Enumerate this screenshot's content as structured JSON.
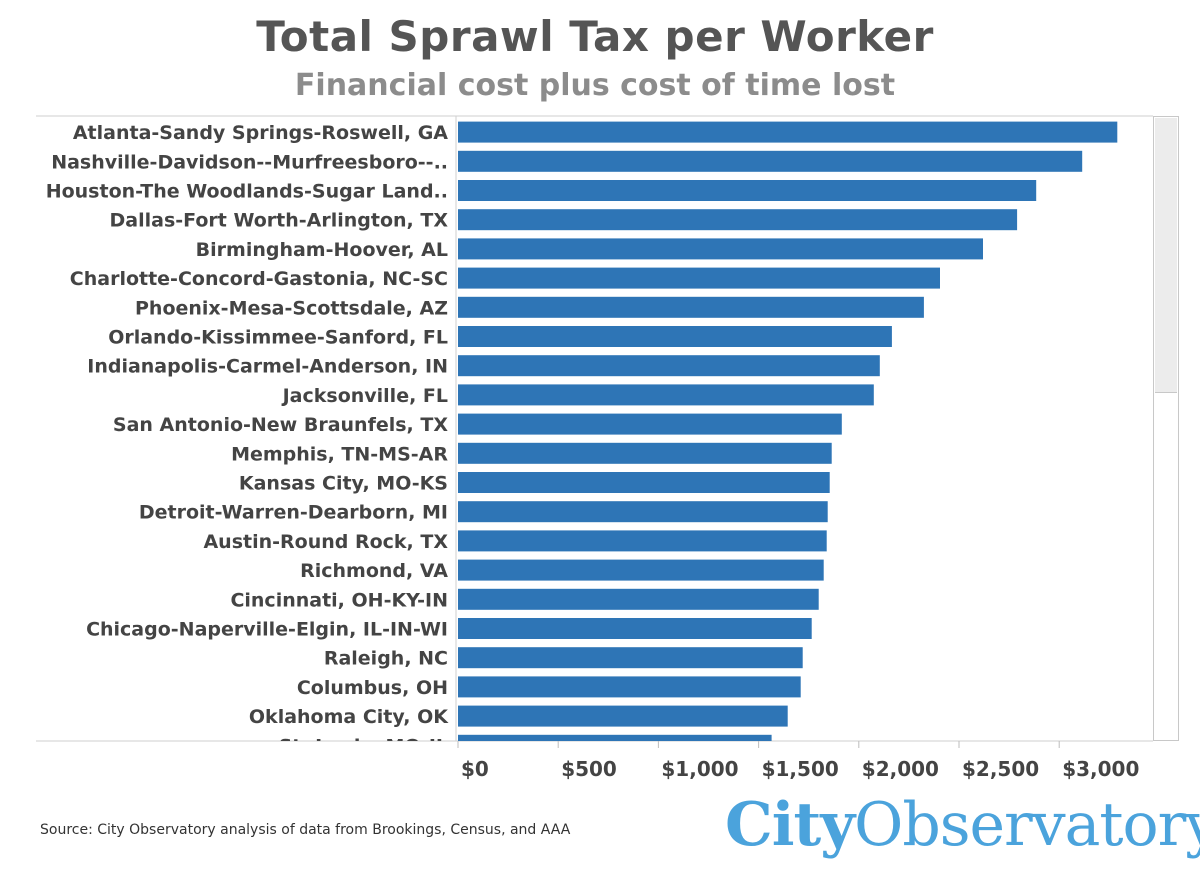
{
  "header": {
    "title": "Total Sprawl Tax per Worker",
    "subtitle": "Financial cost plus cost of time lost"
  },
  "footer": {
    "source": "Source: City Observatory analysis of data from Brookings, Census, and AAA",
    "logo_part1": "City",
    "logo_part2": "Observatory"
  },
  "colors": {
    "bar": "#2e75b6",
    "text": "#444444",
    "logo": "#4ba3dc"
  },
  "chart_data": {
    "type": "bar",
    "orientation": "horizontal",
    "title": "Total Sprawl Tax per Worker",
    "subtitle": "Financial cost plus cost of time lost",
    "categories": [
      "Atlanta-Sandy Springs-Roswell, GA",
      "Nashville-Davidson--Murfreesboro--..",
      "Houston-The Woodlands-Sugar Land..",
      "Dallas-Fort Worth-Arlington, TX",
      "Birmingham-Hoover, AL",
      "Charlotte-Concord-Gastonia, NC-SC",
      "Phoenix-Mesa-Scottsdale, AZ",
      "Orlando-Kissimmee-Sanford, FL",
      "Indianapolis-Carmel-Anderson, IN",
      "Jacksonville, FL",
      "San Antonio-New Braunfels, TX",
      "Memphis, TN-MS-AR",
      "Kansas City, MO-KS",
      "Detroit-Warren-Dearborn, MI",
      "Austin-Round Rock, TX",
      "Richmond, VA",
      "Cincinnati, OH-KY-IN",
      "Chicago-Naperville-Elgin, IL-IN-WI",
      "Raleigh, NC",
      "Columbus, OH",
      "Oklahoma City, OK",
      "St. Louis, MO-IL"
    ],
    "values": [
      3290,
      3115,
      2885,
      2790,
      2620,
      2405,
      2325,
      2165,
      2105,
      2075,
      1915,
      1865,
      1855,
      1845,
      1840,
      1825,
      1800,
      1765,
      1720,
      1710,
      1645,
      1565
    ],
    "xlim": [
      0,
      3450
    ],
    "x_ticks": [
      0,
      500,
      1000,
      1500,
      2000,
      2500,
      3000
    ],
    "x_tick_labels": [
      "$0",
      "$500",
      "$1,000",
      "$1,500",
      "$2,000",
      "$2,500",
      "$3,000"
    ],
    "grid": false,
    "legend": "none"
  }
}
